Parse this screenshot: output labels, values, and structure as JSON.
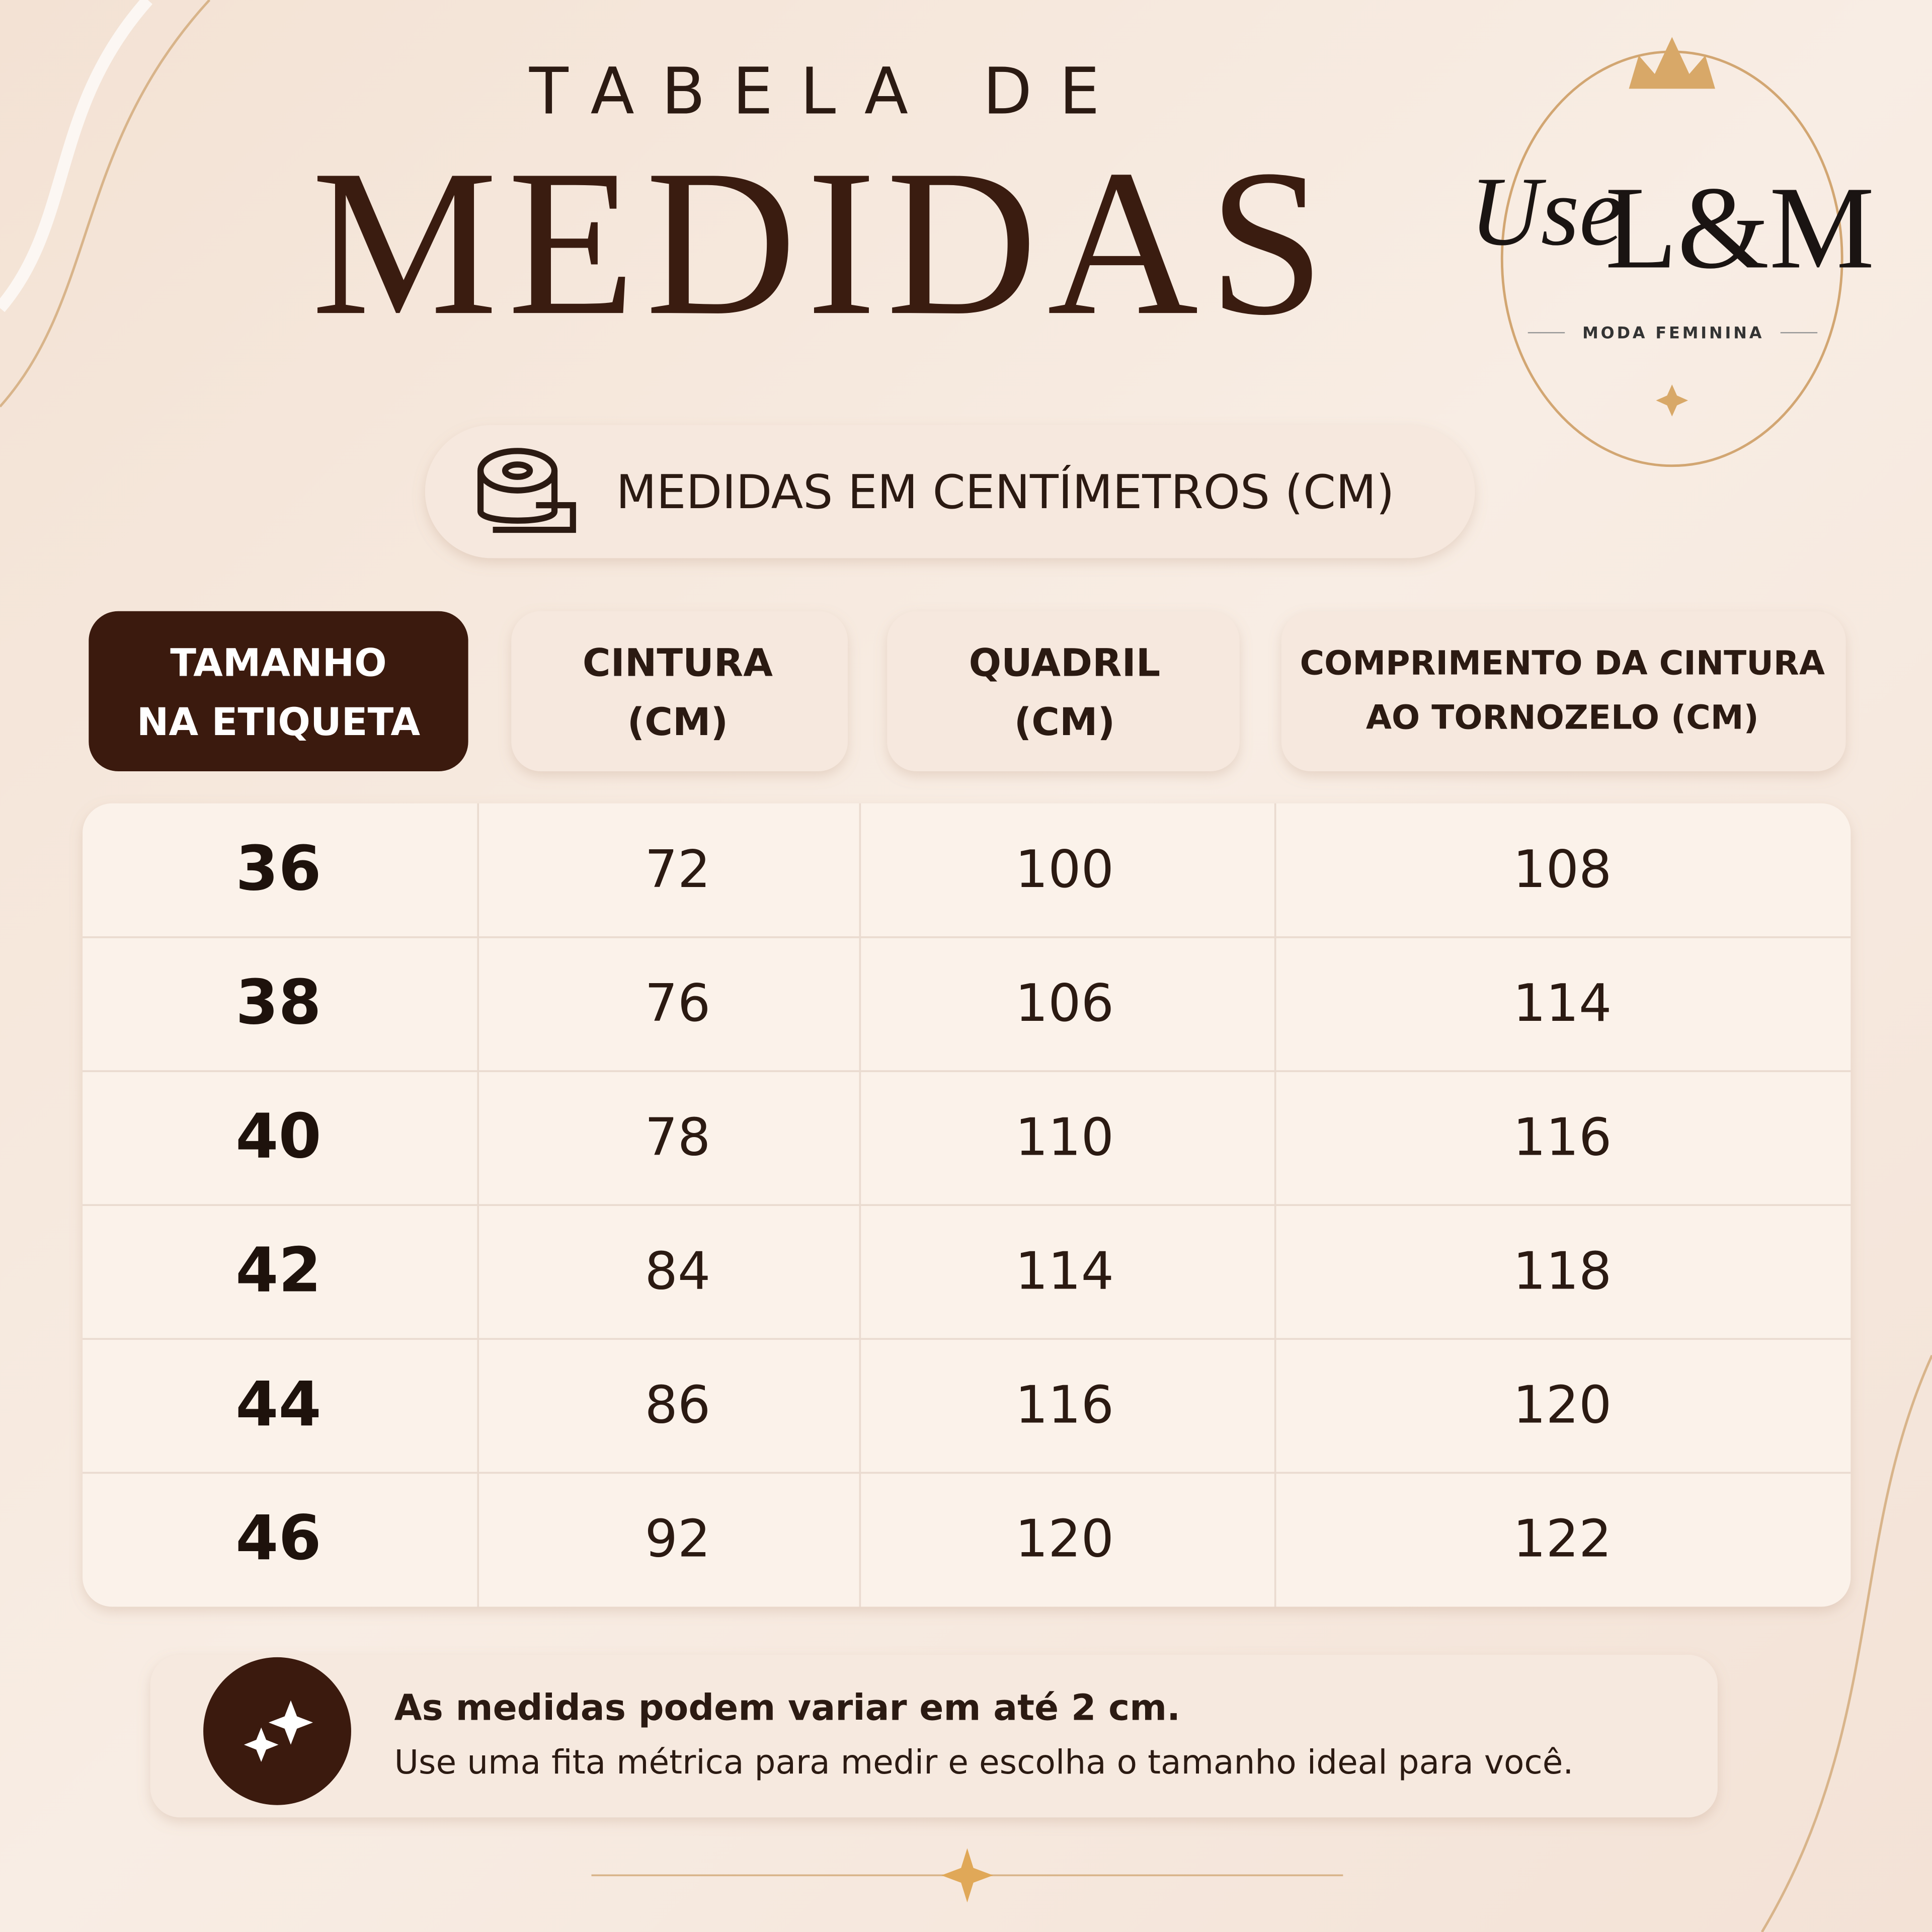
{
  "header": {
    "kicker": "TABELA DE",
    "title": "MEDIDAS"
  },
  "logo": {
    "script": "Use",
    "name": "L&M",
    "tagline": "MODA FEMININA"
  },
  "unit_badge": "MEDIDAS EM CENTÍMETROS (CM)",
  "table": {
    "headers": [
      [
        "TAMANHO",
        "NA ETIQUETA"
      ],
      [
        "CINTURA",
        "(CM)"
      ],
      [
        "QUADRIL",
        "(CM)"
      ],
      [
        "COMPRIMENTO DA CINTURA",
        "AO TORNOZELO (CM)"
      ]
    ],
    "rows": [
      [
        36,
        72,
        100,
        108
      ],
      [
        38,
        76,
        106,
        114
      ],
      [
        40,
        78,
        110,
        116
      ],
      [
        42,
        84,
        114,
        118
      ],
      [
        44,
        86,
        116,
        120
      ],
      [
        46,
        92,
        120,
        122
      ]
    ]
  },
  "note": {
    "title": "As medidas podem variar em até 2 cm.",
    "text": "Use uma fita métrica para medir e escolha o tamanho ideal para você."
  }
}
